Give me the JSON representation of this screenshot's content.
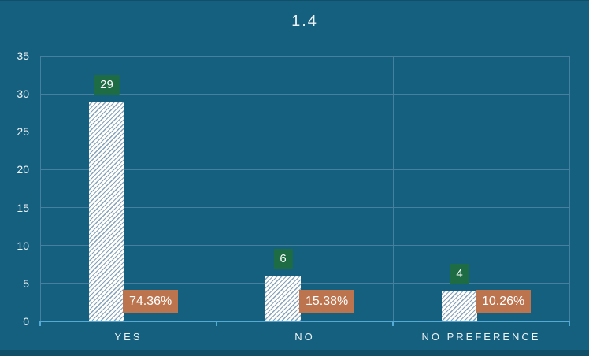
{
  "chart_data": {
    "type": "bar",
    "title": "1.4",
    "categories": [
      "YES",
      "NO",
      "NO PREFERENCE"
    ],
    "series": [
      {
        "name": "count",
        "values": [
          29,
          6,
          4
        ]
      },
      {
        "name": "percent",
        "labels": [
          "74.36%",
          "15.38%",
          "10.26%"
        ]
      }
    ],
    "ylim": [
      0,
      35
    ],
    "yticks": [
      0,
      5,
      10,
      15,
      20,
      25,
      30,
      35
    ],
    "grid": true,
    "legend_position": "none",
    "bar_fill": "white-diagonal-hatch",
    "colors": {
      "background": "#155f7f",
      "edge_strip": "#114e68",
      "gridline": "#47809f",
      "axis_line": "#54aad7",
      "count_label_bg": "#1e6c43",
      "percent_label_bg": "#bc744e",
      "hatch_line": "#85a2b9",
      "text": "#edf2f5"
    }
  }
}
